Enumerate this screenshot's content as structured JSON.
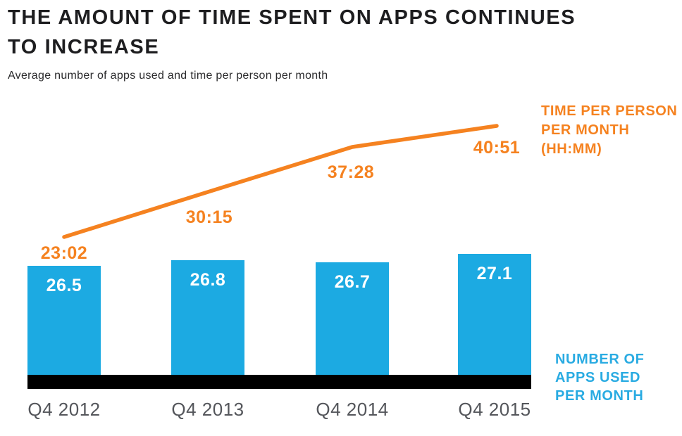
{
  "title": {
    "line1": "THE AMOUNT OF TIME SPENT ON APPS CONTINUES",
    "line2": "TO INCREASE"
  },
  "subtitle": "Average number of apps used and time per person per month",
  "chart_data": {
    "type": "combo-bar-line",
    "categories": [
      "Q4 2012",
      "Q4 2013",
      "Q4 2014",
      "Q4 2015"
    ],
    "series": [
      {
        "name": "NUMBER OF APPS USED PER MONTH",
        "type": "bar",
        "values": [
          26.5,
          26.8,
          26.7,
          27.1
        ],
        "value_labels": [
          "26.5",
          "26.8",
          "26.7",
          "27.1"
        ],
        "color": "#1caae2"
      },
      {
        "name": "TIME PER PERSON PER MONTH (HH:MM)",
        "type": "line",
        "values_hhmm": [
          "23:02",
          "30:15",
          "37:28",
          "40:51"
        ],
        "values_minutes": [
          1382,
          1815,
          2248,
          2451
        ],
        "color": "#f58220"
      }
    ],
    "grid": "off",
    "legend_position": "right-annotations"
  },
  "legends": {
    "time": {
      "line1": "TIME PER PERSON",
      "line2": "PER MONTH",
      "line3": "(HH:MM)"
    },
    "apps": {
      "line1": "NUMBER OF",
      "line2": "APPS USED",
      "line3": "PER MONTH"
    }
  },
  "colors": {
    "bar": "#1caae2",
    "bar_value_text": "#ffffff",
    "line": "#f58220",
    "time_value_text": "#f58220",
    "axis_bar": "#000000",
    "category_text": "#54565b",
    "title_text": "#1d1d1f",
    "legend_apps_text": "#29abe2",
    "background": "#ffffff"
  }
}
